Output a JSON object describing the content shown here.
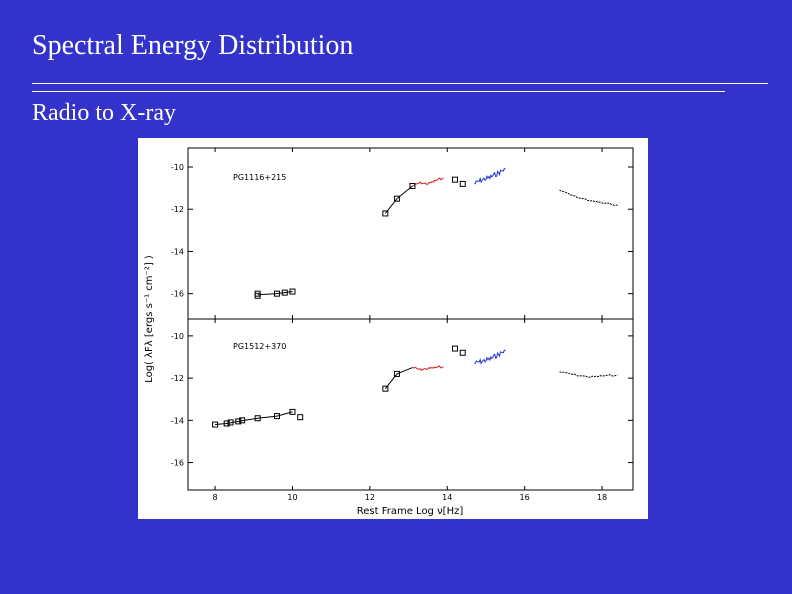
{
  "slide": {
    "title": "Spectral Energy Distribution",
    "subtitle": "Radio to X-ray"
  },
  "colors": {
    "background": "#3333cc",
    "text": "#ffffff",
    "ir_series": "#cc2222",
    "uv_series": "#2233cc"
  },
  "chart_data": {
    "type": "scatter",
    "xlabel": "Rest Frame  Log ν[Hz]",
    "ylabel": "Log( λFλ [ergs s⁻¹ cm⁻²] )",
    "xlim": [
      7.3,
      18.8
    ],
    "x_ticks": [
      "8",
      "10",
      "12",
      "14",
      "16",
      "18"
    ],
    "panels": [
      {
        "name": "PG1116+215",
        "ylim": [
          -17.2,
          -9.1
        ],
        "y_ticks": [
          "-10",
          "-12",
          "-14",
          "-16"
        ],
        "photometry": {
          "x": [
            9.1,
            9.1,
            9.6,
            9.8,
            10.0,
            12.4,
            12.7,
            13.1,
            14.2,
            14.4
          ],
          "y": [
            -16.0,
            -16.1,
            -16.0,
            -15.95,
            -15.9,
            -12.2,
            -11.5,
            -10.9,
            -10.6,
            -10.8
          ]
        },
        "radio_line": {
          "x": [
            9.1,
            9.6,
            9.8,
            10.0
          ],
          "y": [
            -16.05,
            -16.0,
            -15.95,
            -15.9
          ]
        },
        "ir_line": {
          "x": [
            12.4,
            12.7,
            13.1
          ],
          "y": [
            -12.2,
            -11.5,
            -10.9
          ]
        },
        "ir_spectrum": {
          "x": [
            13.1,
            13.3,
            13.5,
            13.7,
            13.9
          ],
          "y": [
            -10.9,
            -10.75,
            -10.8,
            -10.65,
            -10.5
          ]
        },
        "uv_spectrum": {
          "x": [
            14.7,
            14.9,
            15.1,
            15.3,
            15.5
          ],
          "y": [
            -10.8,
            -10.6,
            -10.5,
            -10.3,
            -10.1
          ]
        },
        "xray_spectrum": {
          "x": [
            16.9,
            17.3,
            17.7,
            18.0,
            18.4
          ],
          "y": [
            -11.1,
            -11.4,
            -11.6,
            -11.7,
            -11.8
          ]
        }
      },
      {
        "name": "PG1512+370",
        "ylim": [
          -17.3,
          -9.2
        ],
        "y_ticks": [
          "-10",
          "-12",
          "-14",
          "-16"
        ],
        "photometry": {
          "x": [
            8.0,
            8.3,
            8.4,
            8.6,
            8.7,
            9.1,
            9.6,
            10.0,
            10.2,
            12.4,
            12.7,
            14.2,
            14.4
          ],
          "y": [
            -14.2,
            -14.15,
            -14.1,
            -14.05,
            -14.0,
            -13.9,
            -13.8,
            -13.6,
            -13.85,
            -12.5,
            -11.8,
            -10.6,
            -10.8
          ]
        },
        "radio_line": {
          "x": [
            8.0,
            8.3,
            8.6,
            9.1,
            9.6,
            10.0
          ],
          "y": [
            -14.2,
            -14.15,
            -14.05,
            -13.9,
            -13.8,
            -13.6
          ]
        },
        "ir_line": {
          "x": [
            12.4,
            12.7,
            13.1
          ],
          "y": [
            -12.5,
            -11.8,
            -11.5
          ]
        },
        "ir_spectrum": {
          "x": [
            13.1,
            13.3,
            13.5,
            13.7,
            13.9
          ],
          "y": [
            -11.5,
            -11.6,
            -11.55,
            -11.5,
            -11.45
          ]
        },
        "uv_spectrum": {
          "x": [
            14.7,
            14.9,
            15.1,
            15.3,
            15.5
          ],
          "y": [
            -11.3,
            -11.2,
            -11.1,
            -10.9,
            -10.7
          ]
        },
        "xray_spectrum": {
          "x": [
            16.9,
            17.3,
            17.7,
            18.0,
            18.4
          ],
          "y": [
            -11.7,
            -11.85,
            -11.95,
            -11.9,
            -11.85
          ]
        }
      }
    ]
  }
}
